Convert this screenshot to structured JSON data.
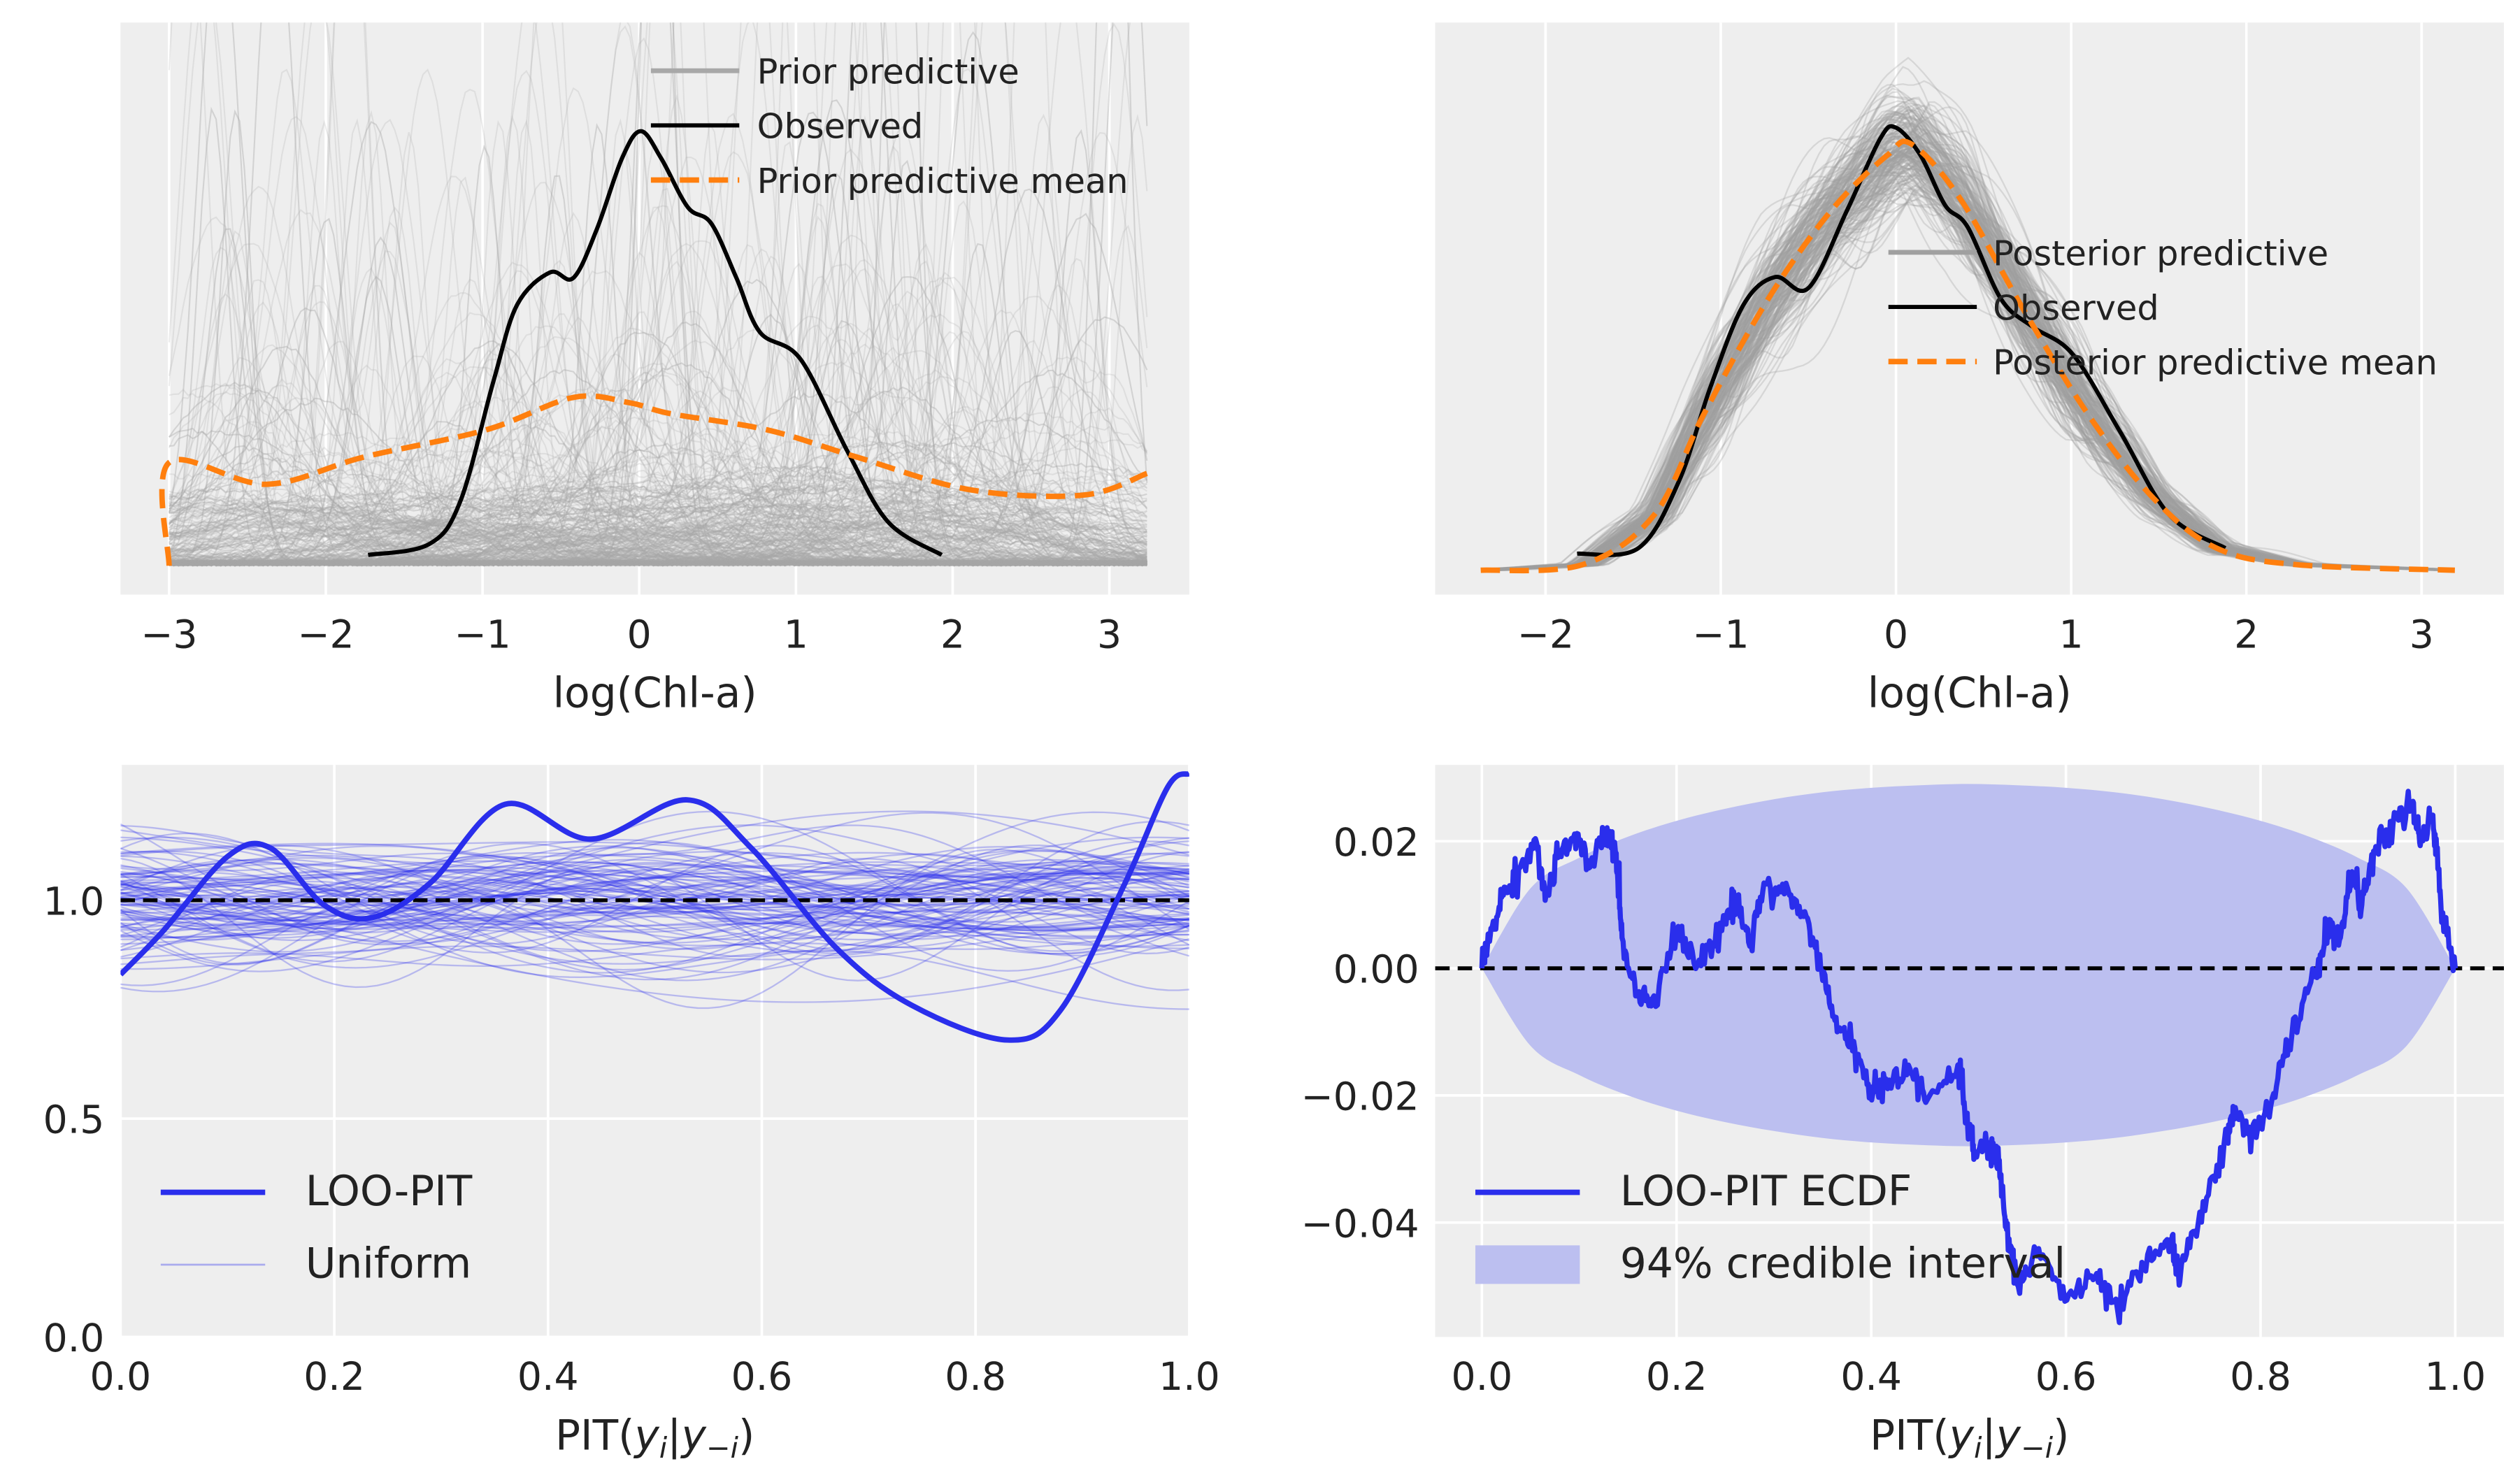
{
  "colors": {
    "axes_background": "#eeeeee",
    "grid": "#ffffff",
    "prior_predictive": "#a8a8a8",
    "posterior_predictive": "#a0a0a0",
    "observed": "#000000",
    "mean": "#ff7f0e",
    "loo_pit": "#2a2eec",
    "uniform": "#2a2eec",
    "interval": "#bcbff0",
    "reference": "#000000"
  },
  "chart_data": [
    {
      "type": "line",
      "panel": "prior predictive check",
      "xlabel": "log(Chl-a)",
      "xlim": [
        -3.31,
        3.51
      ],
      "ylim": [
        -0.053,
        1.0
      ],
      "xticks": [
        -3,
        -2,
        -1,
        0,
        1,
        2,
        3
      ],
      "xtick_labels": [
        "−3",
        "−2",
        "−1",
        "0",
        "1",
        "2",
        "3"
      ],
      "yticks": [],
      "grid": true,
      "legend": {
        "position": "upper right",
        "entries": [
          "Prior predictive",
          "Observed",
          "Prior predictive mean"
        ]
      },
      "series": [
        {
          "name": "Prior predictive",
          "kind": "many sample density curves",
          "color": "#a8a8a8",
          "style": "solid"
        },
        {
          "name": "Observed",
          "color": "#000000",
          "style": "solid",
          "x": [
            -1.73,
            -1.34,
            -1.14,
            -0.93,
            -0.78,
            -0.57,
            -0.42,
            -0.27,
            -0.11,
            0.01,
            0.14,
            0.31,
            0.46,
            0.62,
            0.77,
            1.03,
            1.33,
            1.59,
            1.93
          ],
          "y": [
            0.02,
            0.04,
            0.12,
            0.34,
            0.48,
            0.54,
            0.53,
            0.62,
            0.75,
            0.8,
            0.75,
            0.66,
            0.63,
            0.53,
            0.43,
            0.38,
            0.21,
            0.08,
            0.02
          ]
        },
        {
          "name": "Prior predictive mean",
          "color": "#ff7f0e",
          "style": "dashed",
          "x": [
            -3.0,
            -3.0,
            -2.38,
            -1.76,
            -0.98,
            -0.42,
            -0.06,
            0.2,
            0.82,
            1.39,
            2.11,
            2.83,
            3.24
          ],
          "y": [
            0.0,
            0.19,
            0.15,
            0.2,
            0.25,
            0.31,
            0.3,
            0.28,
            0.25,
            0.2,
            0.14,
            0.13,
            0.17
          ]
        }
      ]
    },
    {
      "type": "line",
      "panel": "posterior predictive check",
      "xlabel": "log(Chl-a)",
      "xlim": [
        -2.63,
        3.47
      ],
      "ylim": [
        -0.044,
        0.99
      ],
      "xticks": [
        -2,
        -1,
        0,
        1,
        2,
        3
      ],
      "xtick_labels": [
        "−2",
        "−1",
        "0",
        "1",
        "2",
        "3"
      ],
      "yticks": [],
      "grid": true,
      "legend": {
        "position": "center right",
        "entries": [
          "Posterior predictive",
          "Observed",
          "Posterior predictive mean"
        ]
      },
      "series": [
        {
          "name": "Posterior predictive",
          "kind": "many sample density curves",
          "color": "#a0a0a0",
          "style": "solid"
        },
        {
          "name": "Observed",
          "color": "#000000",
          "style": "solid",
          "x": [
            -1.82,
            -1.47,
            -1.24,
            -1.06,
            -0.87,
            -0.69,
            -0.5,
            -0.28,
            -0.09,
            0.0,
            0.14,
            0.28,
            0.41,
            0.6,
            0.78,
            1.01,
            1.28,
            1.56,
            1.88
          ],
          "y": [
            0.03,
            0.04,
            0.16,
            0.33,
            0.48,
            0.53,
            0.51,
            0.65,
            0.78,
            0.8,
            0.75,
            0.66,
            0.62,
            0.49,
            0.44,
            0.39,
            0.25,
            0.1,
            0.04
          ]
        },
        {
          "name": "Posterior predictive mean",
          "color": "#ff7f0e",
          "style": "dashed",
          "x": [
            -2.37,
            -1.79,
            -1.38,
            -1.1,
            -0.73,
            -0.37,
            -0.05,
            0.09,
            0.37,
            0.73,
            1.1,
            1.47,
            1.83,
            2.29,
            3.19
          ],
          "y": [
            0.0,
            0.01,
            0.1,
            0.28,
            0.49,
            0.65,
            0.75,
            0.77,
            0.67,
            0.47,
            0.28,
            0.13,
            0.04,
            0.01,
            0.0
          ]
        }
      ]
    },
    {
      "type": "line",
      "panel": "LOO-PIT KDE",
      "xlabel_parts": [
        "PIT(",
        "y",
        "i",
        "|",
        "y",
        "−i",
        ")"
      ],
      "xlim": [
        0,
        1
      ],
      "ylim": [
        0,
        1.31
      ],
      "xticks": [
        0,
        0.2,
        0.4,
        0.6,
        0.8,
        1.0
      ],
      "xtick_labels": [
        "0.0",
        "0.2",
        "0.4",
        "0.6",
        "0.8",
        "1.0"
      ],
      "yticks": [
        0,
        0.5,
        1.0
      ],
      "ytick_labels": [
        "0.0",
        "0.5",
        "1.0"
      ],
      "grid": true,
      "reference_line": 1.0,
      "legend": {
        "position": "lower left",
        "entries": [
          "LOO-PIT",
          "Uniform"
        ]
      },
      "series": [
        {
          "name": "LOO-PIT",
          "color": "#2a2eec",
          "style": "solid",
          "x": [
            0,
            0.04,
            0.1,
            0.14,
            0.19,
            0.235,
            0.29,
            0.36,
            0.44,
            0.53,
            0.59,
            0.67,
            0.74,
            0.83,
            0.88,
            0.94,
            0.98,
            1.0
          ],
          "y": [
            0.83,
            0.93,
            1.1,
            1.12,
            0.99,
            0.96,
            1.04,
            1.22,
            1.14,
            1.23,
            1.12,
            0.89,
            0.76,
            0.68,
            0.75,
            1.04,
            1.26,
            1.29
          ]
        },
        {
          "name": "Uniform",
          "kind": "many uniform-sample density curves",
          "color": "#2a2eec",
          "style": "solid"
        }
      ]
    },
    {
      "type": "line",
      "panel": "LOO-PIT ECDF difference",
      "xlabel_parts": [
        "PIT(",
        "y",
        "i",
        "|",
        "y",
        "−i",
        ")"
      ],
      "xlim": [
        -0.048,
        1.05
      ],
      "ylim": [
        -0.058,
        0.032
      ],
      "xticks": [
        0,
        0.2,
        0.4,
        0.6,
        0.8,
        1.0
      ],
      "xtick_labels": [
        "0.0",
        "0.2",
        "0.4",
        "0.6",
        "0.8",
        "1.0"
      ],
      "yticks": [
        0.02,
        0.0,
        -0.02,
        -0.04
      ],
      "ytick_labels": [
        "0.02",
        "0.00",
        "−0.02",
        "−0.04"
      ],
      "grid": true,
      "reference_line": 0.0,
      "legend": {
        "position": "lower left",
        "entries": [
          "LOO-PIT ECDF",
          "94% credible interval"
        ]
      },
      "band": {
        "name": "94% credible interval",
        "x": [
          0,
          0.05,
          0.1,
          0.15,
          0.2,
          0.25,
          0.3,
          0.35,
          0.4,
          0.45,
          0.5,
          0.55,
          0.6,
          0.65,
          0.7,
          0.75,
          0.8,
          0.85,
          0.9,
          0.95,
          1.0
        ],
        "upper": [
          0,
          0.0126,
          0.0174,
          0.0207,
          0.0232,
          0.0251,
          0.0266,
          0.0277,
          0.0284,
          0.0288,
          0.029,
          0.0288,
          0.0284,
          0.0277,
          0.0266,
          0.0251,
          0.0232,
          0.0207,
          0.0174,
          0.0126,
          0
        ],
        "lower": [
          0,
          -0.0122,
          -0.0168,
          -0.02,
          -0.0224,
          -0.0242,
          -0.0256,
          -0.0267,
          -0.0274,
          -0.0278,
          -0.028,
          -0.0278,
          -0.0274,
          -0.0267,
          -0.0256,
          -0.0242,
          -0.0224,
          -0.02,
          -0.0168,
          -0.0122,
          0
        ]
      },
      "series": [
        {
          "name": "LOO-PIT ECDF",
          "color": "#2a2eec",
          "style": "solid",
          "x": [
            0,
            0.01,
            0.022,
            0.035,
            0.055,
            0.065,
            0.078,
            0.094,
            0.111,
            0.126,
            0.138,
            0.144,
            0.159,
            0.175,
            0.2,
            0.225,
            0.25,
            0.262,
            0.274,
            0.291,
            0.316,
            0.336,
            0.349,
            0.365,
            0.382,
            0.398,
            0.415,
            0.44,
            0.456,
            0.489,
            0.498,
            0.506,
            0.522,
            0.531,
            0.539,
            0.551,
            0.572,
            0.601,
            0.63,
            0.653,
            0.68,
            0.708,
            0.717,
            0.741,
            0.766,
            0.774,
            0.791,
            0.812,
            0.832,
            0.857,
            0.869,
            0.882,
            0.894,
            0.904,
            0.917,
            0.936,
            0.956,
            0.964,
            0.977,
            0.985,
            1.0
          ],
          "y": [
            0,
            0.0063,
            0.0115,
            0.0144,
            0.0204,
            0.0107,
            0.0174,
            0.0204,
            0.0159,
            0.0215,
            0.0181,
            0.0048,
            -0.0041,
            -0.0048,
            0.0056,
            0.0004,
            0.0078,
            0.0111,
            0.0041,
            0.0133,
            0.0115,
            0.007,
            -0.0004,
            -0.01,
            -0.0115,
            -0.0204,
            -0.0174,
            -0.0159,
            -0.0211,
            -0.0152,
            -0.0233,
            -0.0293,
            -0.0278,
            -0.0307,
            -0.0411,
            -0.05,
            -0.0441,
            -0.0522,
            -0.0485,
            -0.0537,
            -0.047,
            -0.0426,
            -0.0493,
            -0.0367,
            -0.027,
            -0.0219,
            -0.0263,
            -0.0204,
            -0.0107,
            -0.0004,
            0.0063,
            0.0048,
            0.0152,
            0.01,
            0.0181,
            0.0226,
            0.0259,
            0.0193,
            0.0241,
            0.0107,
            0
          ]
        }
      ]
    }
  ]
}
